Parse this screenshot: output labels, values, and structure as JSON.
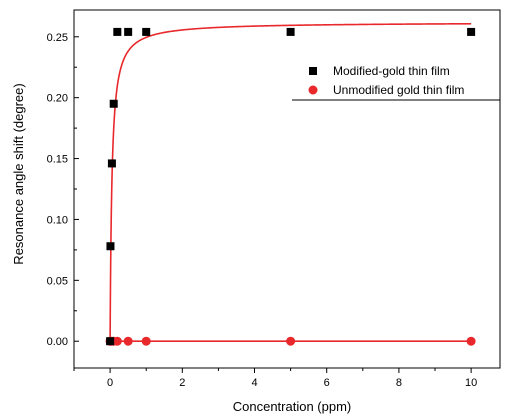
{
  "chart_data": {
    "type": "scatter",
    "xlabel": "Concentration (ppm)",
    "ylabel": "Resonance angle shift (degree)",
    "xlim": [
      -1,
      10.8
    ],
    "ylim": [
      -0.022,
      0.272
    ],
    "xticks": [
      0,
      2,
      4,
      6,
      8,
      10
    ],
    "yticks": [
      0.0,
      0.05,
      0.1,
      0.15,
      0.2,
      0.25
    ],
    "xtick_labels": [
      "0",
      "2",
      "4",
      "6",
      "8",
      "10"
    ],
    "ytick_labels": [
      "0.00",
      "0.05",
      "0.10",
      "0.15",
      "0.20",
      "0.25"
    ],
    "grid": false,
    "legend_position": "top-right",
    "series": [
      {
        "name": "Modified-gold thin film",
        "marker": "square",
        "color": "#000000",
        "x": [
          0,
          0.01,
          0.05,
          0.1,
          0.2,
          0.5,
          1,
          5,
          10
        ],
        "y": [
          0.0,
          0.078,
          0.146,
          0.195,
          0.254,
          0.254,
          0.254,
          0.254,
          0.254
        ]
      },
      {
        "name": "Unmodified gold thin film",
        "marker": "circle",
        "color": "#e8282b",
        "x": [
          0,
          0.01,
          0.05,
          0.1,
          0.2,
          0.5,
          1,
          5,
          10
        ],
        "y": [
          0,
          0,
          0,
          0,
          0,
          0,
          0,
          0,
          0
        ]
      }
    ],
    "fit_curve": {
      "color": "#e8282b",
      "model": "langmuir",
      "ymax": 0.262,
      "k": 0.05,
      "x_range": [
        0,
        10
      ]
    }
  }
}
